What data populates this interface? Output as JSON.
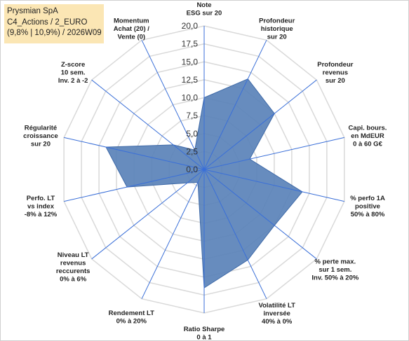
{
  "header": {
    "line1": "Prysmian SpA",
    "line2": "C4_Actions / 2_EURO",
    "line3": "(9,8% | 10,9%) / 2026W09"
  },
  "colors": {
    "fill": "#5a82b8",
    "stroke": "#3f6aa8",
    "spoke": "#3a6fd8",
    "grid": "#d9d9d9",
    "header_bg": "#fbe6b4"
  },
  "chart_data": {
    "type": "radar",
    "rmin": 0,
    "rmax": 20,
    "tick_step": 2.5,
    "tick_labels": [
      "0,0",
      "2,5",
      "5,0",
      "7,5",
      "10,0",
      "12,5",
      "15,0",
      "17,5",
      "20,0"
    ],
    "grid": true,
    "axes": [
      {
        "lines": [
          "Note",
          "ESG sur 20"
        ]
      },
      {
        "lines": [
          "Profondeur",
          "historique",
          "sur 20"
        ]
      },
      {
        "lines": [
          "Profondeur",
          "revenus",
          "sur 20"
        ]
      },
      {
        "lines": [
          "Capi. bours.",
          "en MdEUR",
          "0 à 60 G€"
        ]
      },
      {
        "lines": [
          "% perfo 1A",
          "positive",
          "50% à 80%"
        ]
      },
      {
        "lines": [
          "% perte max.",
          "sur 1 sem.",
          "Inv. 50% à 20%"
        ]
      },
      {
        "lines": [
          "Volatilité LT",
          "inversée",
          "40% à 0%"
        ]
      },
      {
        "lines": [
          "Ratio Sharpe",
          "0 à 1"
        ]
      },
      {
        "lines": [
          "Rendement LT",
          "0% à 20%"
        ]
      },
      {
        "lines": [
          "Niveau LT",
          "revenus",
          "reccurents",
          "0% à 6%"
        ]
      },
      {
        "lines": [
          "Perfo. LT",
          "vs index",
          "-8% à 12%"
        ]
      },
      {
        "lines": [
          "Régularité",
          "croissance",
          "sur 20"
        ]
      },
      {
        "lines": [
          "Z-score",
          "10 sem.",
          "Inv. 2 à -2"
        ]
      },
      {
        "lines": [
          "Momentum",
          "Achat (20) /",
          "Vente (0)"
        ]
      }
    ],
    "values": [
      10,
      14,
      12.5,
      6.5,
      14,
      12.5,
      14,
      16.5,
      2,
      3,
      11,
      14,
      5.5,
      3
    ]
  }
}
